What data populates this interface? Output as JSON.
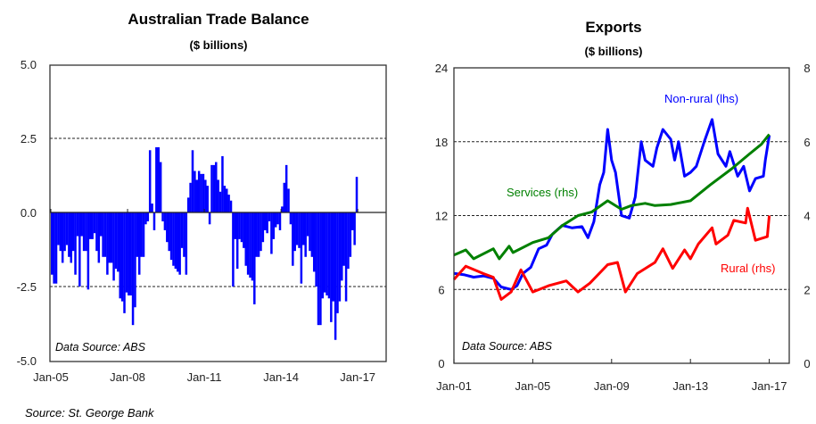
{
  "footer_source": "Source: St. George Bank",
  "chart_data": [
    {
      "type": "bar",
      "title": "Australian Trade Balance",
      "subtitle": "($ billions)",
      "annotation": "Data Source: ABS",
      "ylim": [
        -5,
        5
      ],
      "yticks": [
        "5.0",
        "2.5",
        "0.0",
        "-2.5",
        "-5.0"
      ],
      "ytick_values": [
        5,
        2.5,
        0,
        -2.5,
        -5
      ],
      "xticks": [
        "Jan-05",
        "Jan-08",
        "Jan-11",
        "Jan-14",
        "Jan-17"
      ],
      "xtick_month_index": [
        0,
        36,
        72,
        108,
        144
      ],
      "frequency": "monthly from Jan-05",
      "grid": "dashed at 5.0, 2.5, -2.5",
      "color": "#0000ff",
      "values": [
        -2.1,
        -2.4,
        -2.4,
        -1.1,
        -1.3,
        -1.7,
        -1.3,
        -1.1,
        -1.5,
        -1.7,
        -1.3,
        -2.1,
        -0.8,
        -2.5,
        -0.8,
        -1.3,
        -1.3,
        -2.6,
        -0.9,
        -0.9,
        -0.7,
        -1.3,
        -1.7,
        -0.8,
        -1.5,
        -1.5,
        -2.1,
        -1.7,
        -1.7,
        -2.3,
        -1.9,
        -2.0,
        -2.9,
        -3.0,
        -3.4,
        -2.7,
        -2.8,
        -2.8,
        -3.8,
        -3.2,
        -1.5,
        -2.1,
        -1.5,
        -1.5,
        -0.4,
        -0.3,
        2.1,
        0.3,
        -0.6,
        2.2,
        2.2,
        1.7,
        -0.3,
        -0.6,
        -1.0,
        -1.3,
        -1.6,
        -1.8,
        -1.9,
        -2.0,
        -2.1,
        -1.2,
        -1.5,
        -2.1,
        0.5,
        1.0,
        2.1,
        1.4,
        1.1,
        1.4,
        1.3,
        1.3,
        1.1,
        0.9,
        -0.4,
        1.6,
        1.6,
        1.7,
        1.1,
        0.7,
        1.9,
        0.9,
        0.8,
        0.6,
        0.4,
        -2.5,
        -0.9,
        -1.9,
        -0.9,
        -1.0,
        -1.2,
        -1.8,
        -2.1,
        -2.2,
        -2.3,
        -3.1,
        -1.5,
        -1.5,
        -1.3,
        -1.0,
        -0.6,
        -0.7,
        -0.3,
        -1.4,
        -0.9,
        -0.5,
        -0.4,
        -0.6,
        0.2,
        1.0,
        1.6,
        0.8,
        -0.4,
        -1.8,
        -1.3,
        -1.1,
        -1.2,
        -2.4,
        -1.1,
        -1.5,
        -0.8,
        -1.3,
        -1.5,
        -2.0,
        -2.5,
        -3.8,
        -3.8,
        -2.9,
        -2.7,
        -2.8,
        -2.9,
        -3.7,
        -3.0,
        -4.3,
        -3.4,
        -3.0,
        -2.3,
        -1.8,
        -3.0,
        -1.9,
        -1.5,
        -0.6,
        -1.1,
        1.2
      ]
    },
    {
      "type": "line",
      "title": "Exports",
      "subtitle": "($ billions)",
      "annotation": "Data Source: ABS",
      "ylim_lhs": [
        0,
        24
      ],
      "ylim_rhs": [
        0,
        8
      ],
      "yticks_lhs": [
        "24",
        "18",
        "12",
        "6",
        "0"
      ],
      "ytick_values_lhs": [
        24,
        18,
        12,
        6,
        0
      ],
      "yticks_rhs": [
        "8",
        "6",
        "4",
        "2",
        "0"
      ],
      "xticks": [
        "Jan-01",
        "Jan-05",
        "Jan-09",
        "Jan-13",
        "Jan-17"
      ],
      "xtick_years": [
        2001,
        2005,
        2009,
        2013,
        2017
      ],
      "xlim": [
        2001,
        2017.3
      ],
      "grid": "dashed at 6, 12, 18, 24",
      "series": [
        {
          "name": "Non-rural (lhs)",
          "axis": "lhs",
          "color": "#0000ff",
          "x": [
            2001.0,
            2001.5,
            2002.0,
            2002.5,
            2003.0,
            2003.4,
            2003.9,
            2004.2,
            2004.5,
            2004.9,
            2005.3,
            2005.7,
            2006.0,
            2006.5,
            2007.0,
            2007.5,
            2007.8,
            2008.1,
            2008.4,
            2008.6,
            2008.8,
            2009.0,
            2009.2,
            2009.5,
            2009.9,
            2010.2,
            2010.5,
            2010.7,
            2011.1,
            2011.3,
            2011.6,
            2012.0,
            2012.2,
            2012.4,
            2012.7,
            2013.0,
            2013.3,
            2013.7,
            2014.1,
            2014.4,
            2014.8,
            2015.0,
            2015.4,
            2015.7,
            2016.0,
            2016.3,
            2016.7,
            2016.8,
            2017.0
          ],
          "values": [
            7.3,
            7.2,
            7.0,
            7.1,
            6.9,
            6.2,
            6.0,
            6.3,
            7.3,
            7.8,
            9.3,
            9.6,
            10.5,
            11.2,
            11.0,
            11.1,
            10.2,
            11.5,
            14.5,
            15.5,
            19.0,
            16.5,
            15.5,
            12.0,
            11.8,
            13.5,
            18.0,
            16.5,
            16.0,
            17.5,
            19.0,
            18.2,
            16.5,
            18.0,
            15.2,
            15.5,
            16.0,
            18.0,
            19.8,
            17.0,
            16.0,
            17.2,
            15.2,
            16.0,
            14.0,
            15.0,
            15.2,
            16.5,
            18.5
          ]
        },
        {
          "name": "Services (rhs)",
          "axis": "rhs",
          "color": "#008000",
          "x": [
            2001.0,
            2001.6,
            2002.0,
            2003.0,
            2003.3,
            2003.8,
            2004.0,
            2005.0,
            2005.8,
            2006.5,
            2007.3,
            2008.0,
            2008.8,
            2009.5,
            2010.0,
            2010.7,
            2011.2,
            2012.0,
            2013.0,
            2014.0,
            2015.1,
            2016.0,
            2016.6,
            2017.0
          ],
          "values": [
            2.93,
            3.07,
            2.83,
            3.1,
            2.83,
            3.17,
            3.0,
            3.27,
            3.4,
            3.73,
            4.0,
            4.1,
            4.4,
            4.17,
            4.27,
            4.33,
            4.27,
            4.3,
            4.4,
            4.83,
            5.27,
            5.67,
            5.93,
            6.2
          ]
        },
        {
          "name": "Rural (rhs)",
          "axis": "rhs",
          "color": "#ff0000",
          "x": [
            2001.0,
            2001.6,
            2002.5,
            2003.0,
            2003.4,
            2003.9,
            2004.4,
            2005.0,
            2005.8,
            2006.7,
            2007.3,
            2007.9,
            2008.8,
            2009.3,
            2009.7,
            2010.3,
            2011.2,
            2011.6,
            2012.1,
            2012.7,
            2013.0,
            2013.4,
            2014.1,
            2014.3,
            2014.9,
            2015.2,
            2015.8,
            2015.9,
            2016.3,
            2016.9,
            2017.0
          ],
          "values": [
            2.27,
            2.63,
            2.43,
            2.33,
            1.73,
            1.93,
            2.53,
            1.93,
            2.1,
            2.23,
            1.93,
            2.17,
            2.67,
            2.73,
            1.93,
            2.43,
            2.73,
            3.1,
            2.57,
            3.07,
            2.83,
            3.23,
            3.67,
            3.23,
            3.47,
            3.87,
            3.8,
            4.2,
            3.33,
            3.43,
            4.0
          ]
        }
      ]
    }
  ]
}
